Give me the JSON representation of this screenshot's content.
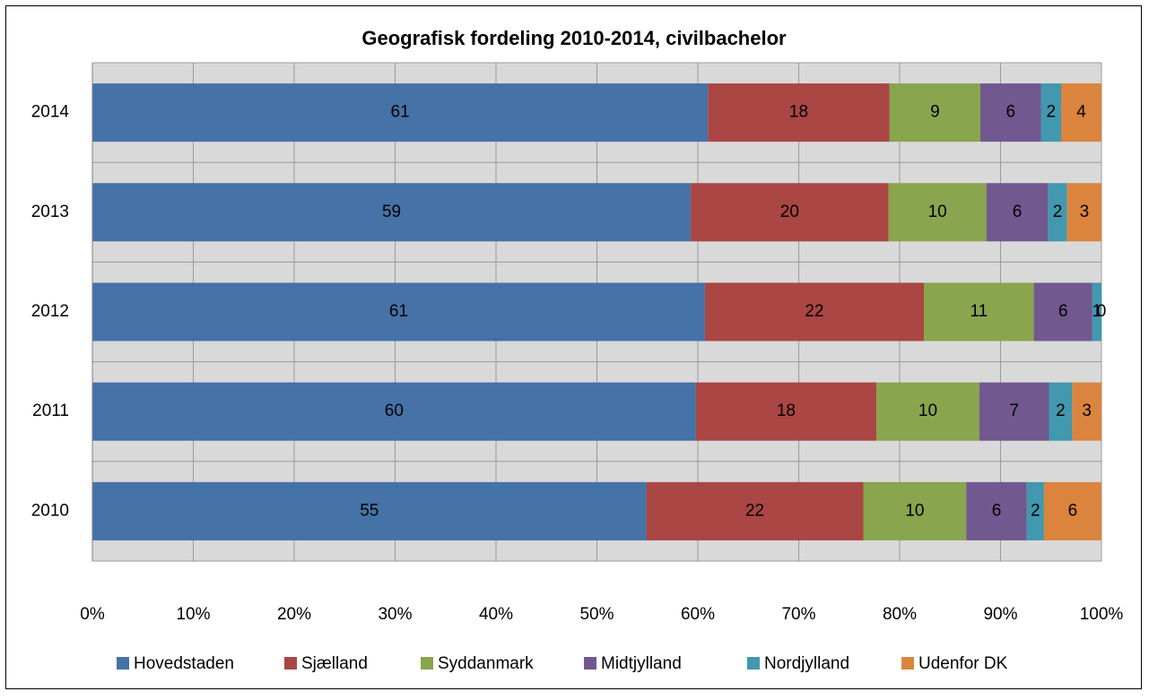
{
  "chart_data": {
    "type": "stacked-bar-horizontal",
    "title": "Geografisk fordeling 2010-2014, civilbachelor",
    "categories": [
      "2014",
      "2013",
      "2012",
      "2011",
      "2010"
    ],
    "series": [
      {
        "name": "Hovedstaden",
        "color": "#4572a7",
        "values": [
          61,
          59.3,
          60.7,
          59.8,
          54.9
        ],
        "value_labels": [
          "61",
          "59",
          "61",
          "60",
          "55"
        ]
      },
      {
        "name": "Sjælland",
        "color": "#aa4643",
        "values": [
          18,
          19.6,
          21.7,
          17.9,
          21.5
        ],
        "value_labels": [
          "18",
          "20",
          "22",
          "18",
          "22"
        ]
      },
      {
        "name": "Syddanmark",
        "color": "#89a54e",
        "values": [
          9,
          9.7,
          10.9,
          10.2,
          10.2
        ],
        "value_labels": [
          "9",
          "10",
          "11",
          "10",
          "10"
        ]
      },
      {
        "name": "Midtjylland",
        "color": "#71588f",
        "values": [
          6,
          6.1,
          5.8,
          6.9,
          6
        ],
        "value_labels": [
          "6",
          "6",
          "6",
          "7",
          "6"
        ]
      },
      {
        "name": "Nordjylland",
        "color": "#4198af",
        "values": [
          2,
          1.9,
          0.9,
          2.3,
          1.7
        ],
        "value_labels": [
          "2",
          "2",
          "1",
          "2",
          "2"
        ]
      },
      {
        "name": "Udenfor DK",
        "color": "#db843d",
        "values": [
          4,
          3.4,
          0,
          2.9,
          5.7
        ],
        "value_labels": [
          "4",
          "3",
          "0",
          "3",
          "6"
        ]
      }
    ],
    "xlim": [
      0,
      100
    ],
    "xticks": [
      {
        "value": 0,
        "label": "0%"
      },
      {
        "value": 10,
        "label": "10%"
      },
      {
        "value": 20,
        "label": "20%"
      },
      {
        "value": 30,
        "label": "30%"
      },
      {
        "value": 40,
        "label": "40%"
      },
      {
        "value": 50,
        "label": "50%"
      },
      {
        "value": 60,
        "label": "60%"
      },
      {
        "value": 70,
        "label": "70%"
      },
      {
        "value": 80,
        "label": "80%"
      },
      {
        "value": 90,
        "label": "90%"
      },
      {
        "value": 100,
        "label": "100%"
      }
    ],
    "grid": true,
    "legend": "bottom"
  }
}
